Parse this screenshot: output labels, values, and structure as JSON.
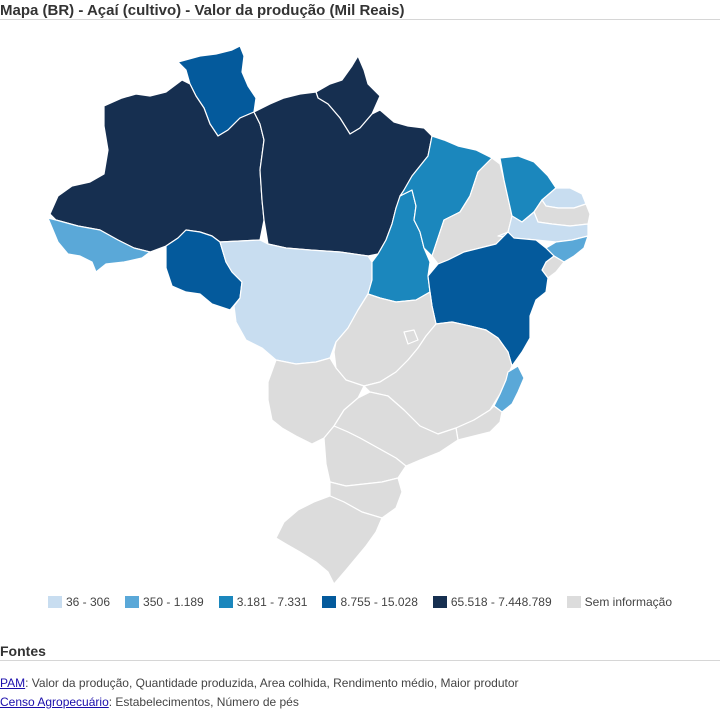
{
  "title": "Mapa (BR) - Açaí (cultivo) - Valor da produção (Mil Reais)",
  "colors": {
    "class1": "#c8ddf0",
    "class2": "#5aa8d8",
    "class3": "#1b87bd",
    "class4": "#045a9c",
    "class5": "#162f50",
    "no_info": "#dcdcdc"
  },
  "legend": [
    {
      "label": "36 - 306",
      "color": "#c8ddf0"
    },
    {
      "label": "350 - 1.189",
      "color": "#5aa8d8"
    },
    {
      "label": "3.181 - 7.331",
      "color": "#1b87bd"
    },
    {
      "label": "8.755 - 15.028",
      "color": "#045a9c"
    },
    {
      "label": "65.518 - 7.448.789",
      "color": "#162f50"
    },
    {
      "label": "Sem informação",
      "color": "#dcdcdc"
    }
  ],
  "sources": {
    "heading": "Fontes",
    "items": [
      {
        "link": "PAM",
        "text": ": Valor da produção, Quantidade produzida, Area colhida, Rendimento médio, Maior produtor"
      },
      {
        "link": "Censo Agropecuário",
        "text": ": Estabelecimentos, Número de pés"
      }
    ]
  }
}
